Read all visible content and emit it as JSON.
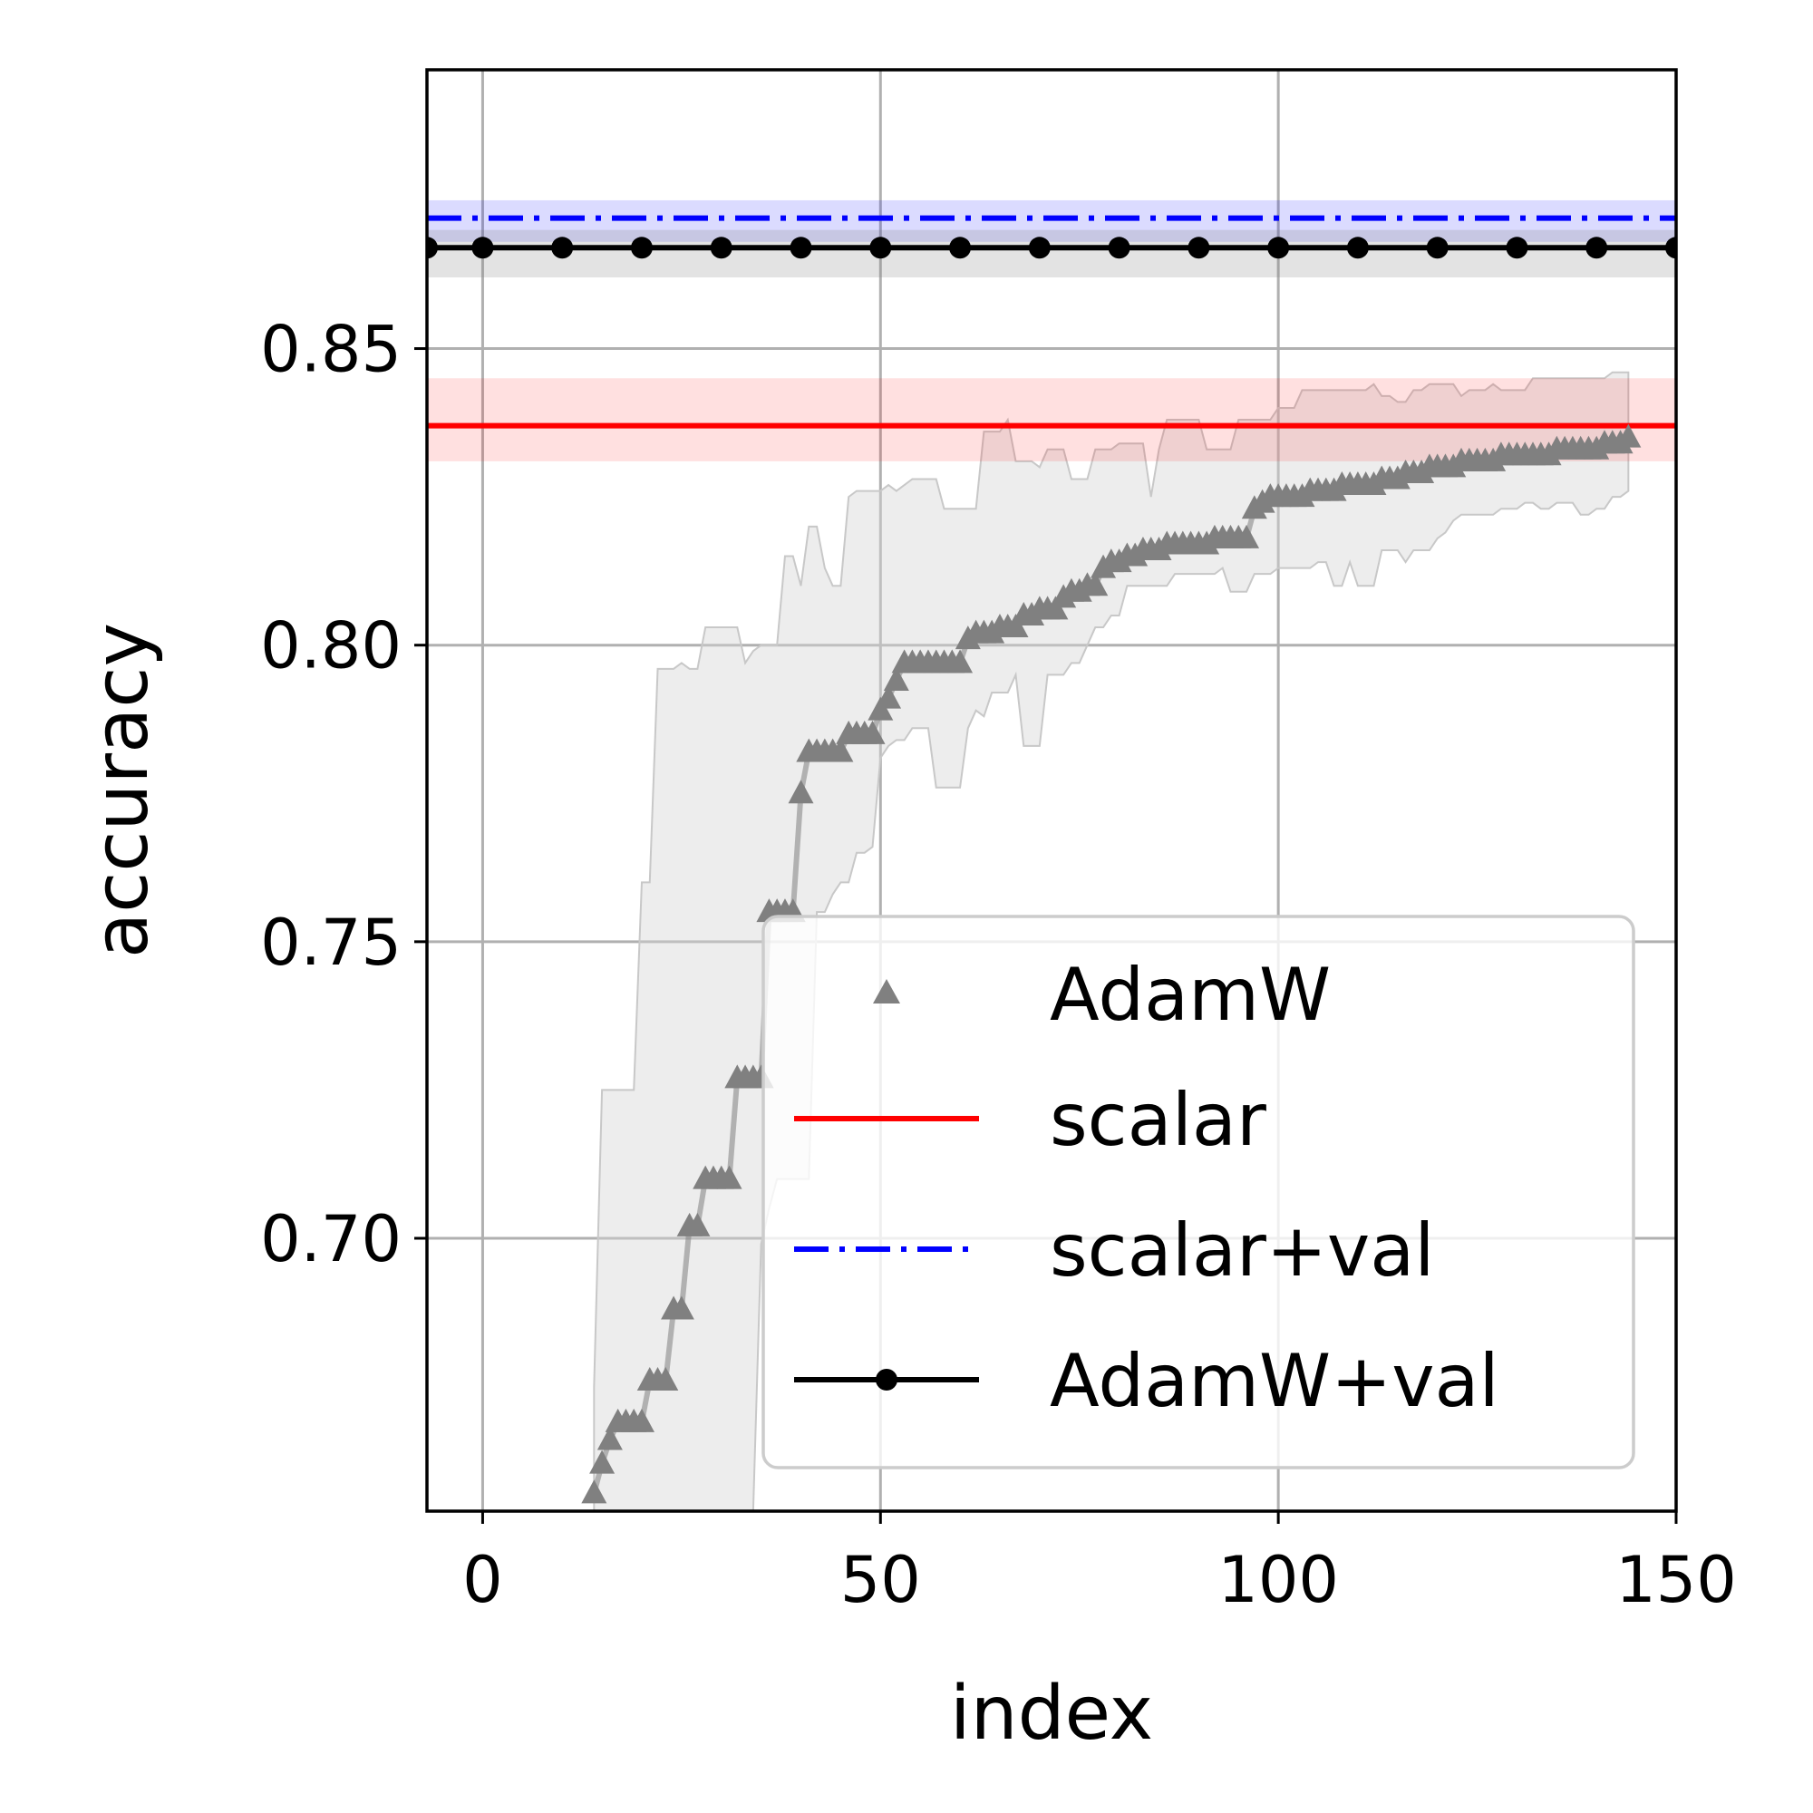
{
  "chart_data": {
    "type": "line",
    "title": "",
    "xlabel": "index",
    "ylabel": "accuracy",
    "xlim": [
      -7,
      150
    ],
    "ylim": [
      0.654,
      0.897
    ],
    "xticks": [
      0,
      50,
      100,
      150
    ],
    "xtick_labels": [
      "0",
      "50",
      "100",
      "150"
    ],
    "yticks": [
      0.7,
      0.75,
      0.8,
      0.85
    ],
    "ytick_labels": [
      "0.70",
      "0.75",
      "0.80",
      "0.85"
    ],
    "grid": true,
    "legend_position": "lower-right",
    "colors": {
      "adamw": "#808080",
      "scalar": "#ff0000",
      "scalar_val": "#0000ff",
      "adamw_val": "#000000",
      "band_gray": "#d3d3d3"
    },
    "series": [
      {
        "name": "AdamW",
        "style": "gray line with triangle markers and shaded band",
        "x": [
          14,
          15,
          16,
          17,
          18,
          19,
          20,
          21,
          22,
          23,
          24,
          25,
          26,
          27,
          28,
          29,
          30,
          31,
          32,
          33,
          34,
          35,
          36,
          37,
          38,
          39,
          40,
          41,
          42,
          43,
          44,
          45,
          46,
          47,
          48,
          49,
          50,
          51,
          52,
          53,
          54,
          55,
          56,
          57,
          58,
          59,
          60,
          61,
          62,
          63,
          64,
          65,
          66,
          67,
          68,
          69,
          70,
          71,
          72,
          73,
          74,
          75,
          76,
          77,
          78,
          79,
          80,
          81,
          82,
          83,
          84,
          85,
          86,
          87,
          88,
          89,
          90,
          91,
          92,
          93,
          94,
          95,
          96,
          97,
          98,
          99,
          100,
          101,
          102,
          103,
          104,
          105,
          106,
          107,
          108,
          109,
          110,
          111,
          112,
          113,
          114,
          115,
          116,
          117,
          118,
          119,
          120,
          121,
          122,
          123,
          124,
          125,
          126,
          127,
          128,
          129,
          130,
          131,
          132,
          133,
          134,
          135,
          136,
          137,
          138,
          139,
          140,
          141,
          142,
          143,
          144
        ],
        "y": [
          0.657,
          0.662,
          0.666,
          0.669,
          0.669,
          0.669,
          0.669,
          0.676,
          0.676,
          0.676,
          0.688,
          0.688,
          0.702,
          0.702,
          0.71,
          0.71,
          0.71,
          0.71,
          0.727,
          0.727,
          0.727,
          0.727,
          0.755,
          0.755,
          0.755,
          0.755,
          0.775,
          0.782,
          0.782,
          0.782,
          0.782,
          0.782,
          0.785,
          0.785,
          0.785,
          0.785,
          0.789,
          0.791,
          0.794,
          0.797,
          0.797,
          0.797,
          0.797,
          0.797,
          0.797,
          0.797,
          0.797,
          0.801,
          0.802,
          0.802,
          0.802,
          0.803,
          0.803,
          0.803,
          0.805,
          0.805,
          0.806,
          0.806,
          0.806,
          0.808,
          0.809,
          0.809,
          0.81,
          0.81,
          0.813,
          0.814,
          0.814,
          0.815,
          0.815,
          0.816,
          0.816,
          0.816,
          0.817,
          0.817,
          0.817,
          0.817,
          0.817,
          0.817,
          0.818,
          0.818,
          0.818,
          0.818,
          0.818,
          0.823,
          0.824,
          0.825,
          0.825,
          0.825,
          0.825,
          0.825,
          0.826,
          0.826,
          0.826,
          0.826,
          0.827,
          0.827,
          0.827,
          0.827,
          0.827,
          0.828,
          0.828,
          0.828,
          0.829,
          0.829,
          0.829,
          0.83,
          0.83,
          0.83,
          0.83,
          0.831,
          0.831,
          0.831,
          0.831,
          0.831,
          0.832,
          0.832,
          0.832,
          0.832,
          0.832,
          0.832,
          0.832,
          0.833,
          0.833,
          0.833,
          0.833,
          0.833,
          0.833,
          0.834,
          0.834,
          0.834,
          0.835
        ],
        "band_upper": [
          0.675,
          0.725,
          0.725,
          0.725,
          0.725,
          0.725,
          0.76,
          0.76,
          0.796,
          0.796,
          0.796,
          0.797,
          0.796,
          0.796,
          0.803,
          0.803,
          0.803,
          0.803,
          0.803,
          0.797,
          0.799,
          0.8,
          0.8,
          0.8,
          0.815,
          0.815,
          0.81,
          0.82,
          0.82,
          0.813,
          0.81,
          0.81,
          0.825,
          0.826,
          0.826,
          0.826,
          0.826,
          0.827,
          0.826,
          0.827,
          0.828,
          0.828,
          0.828,
          0.828,
          0.823,
          0.823,
          0.823,
          0.823,
          0.823,
          0.836,
          0.836,
          0.836,
          0.838,
          0.831,
          0.831,
          0.831,
          0.83,
          0.833,
          0.833,
          0.833,
          0.828,
          0.828,
          0.828,
          0.833,
          0.833,
          0.833,
          0.834,
          0.834,
          0.834,
          0.834,
          0.825,
          0.833,
          0.838,
          0.838,
          0.838,
          0.838,
          0.838,
          0.833,
          0.833,
          0.833,
          0.833,
          0.838,
          0.838,
          0.838,
          0.838,
          0.838,
          0.84,
          0.84,
          0.84,
          0.843,
          0.843,
          0.843,
          0.843,
          0.843,
          0.843,
          0.843,
          0.843,
          0.843,
          0.844,
          0.842,
          0.842,
          0.841,
          0.841,
          0.843,
          0.843,
          0.844,
          0.844,
          0.844,
          0.844,
          0.842,
          0.843,
          0.843,
          0.843,
          0.844,
          0.843,
          0.843,
          0.843,
          0.843,
          0.845,
          0.845,
          0.845,
          0.845,
          0.845,
          0.845,
          0.845,
          0.845,
          0.845,
          0.845,
          0.846,
          0.846,
          0.846
        ],
        "band_lower": [
          0.654,
          0.654,
          0.654,
          0.654,
          0.654,
          0.654,
          0.654,
          0.654,
          0.654,
          0.654,
          0.654,
          0.654,
          0.654,
          0.654,
          0.654,
          0.654,
          0.654,
          0.654,
          0.654,
          0.654,
          0.654,
          0.699,
          0.705,
          0.71,
          0.71,
          0.71,
          0.71,
          0.71,
          0.755,
          0.755,
          0.758,
          0.76,
          0.76,
          0.765,
          0.765,
          0.766,
          0.781,
          0.783,
          0.784,
          0.784,
          0.786,
          0.786,
          0.786,
          0.776,
          0.776,
          0.776,
          0.776,
          0.786,
          0.789,
          0.788,
          0.792,
          0.792,
          0.792,
          0.795,
          0.783,
          0.783,
          0.783,
          0.795,
          0.795,
          0.795,
          0.797,
          0.797,
          0.8,
          0.803,
          0.803,
          0.805,
          0.805,
          0.81,
          0.81,
          0.81,
          0.81,
          0.81,
          0.81,
          0.812,
          0.812,
          0.812,
          0.812,
          0.812,
          0.812,
          0.813,
          0.809,
          0.809,
          0.809,
          0.812,
          0.812,
          0.812,
          0.813,
          0.813,
          0.813,
          0.813,
          0.813,
          0.814,
          0.814,
          0.81,
          0.81,
          0.814,
          0.81,
          0.81,
          0.81,
          0.816,
          0.816,
          0.816,
          0.814,
          0.816,
          0.816,
          0.816,
          0.818,
          0.819,
          0.821,
          0.822,
          0.822,
          0.822,
          0.822,
          0.822,
          0.823,
          0.823,
          0.823,
          0.824,
          0.824,
          0.823,
          0.823,
          0.824,
          0.824,
          0.824,
          0.822,
          0.822,
          0.823,
          0.823,
          0.825,
          0.825,
          0.826
        ]
      },
      {
        "name": "scalar",
        "style": "solid red horizontal line with shaded band",
        "y": 0.837,
        "band": [
          0.831,
          0.845
        ]
      },
      {
        "name": "scalar+val",
        "style": "blue dash-dot horizontal line with shaded band",
        "y": 0.872,
        "band": [
          0.868,
          0.875
        ]
      },
      {
        "name": "AdamW+val",
        "style": "black line with circle markers and shaded band",
        "y": 0.867,
        "band": [
          0.862,
          0.87
        ],
        "marker_x": [
          -7,
          0,
          10,
          20,
          30,
          40,
          50,
          60,
          70,
          80,
          90,
          100,
          110,
          120,
          130,
          140,
          150
        ]
      }
    ],
    "legend": [
      "AdamW",
      "scalar",
      "scalar+val",
      "AdamW+val"
    ]
  }
}
